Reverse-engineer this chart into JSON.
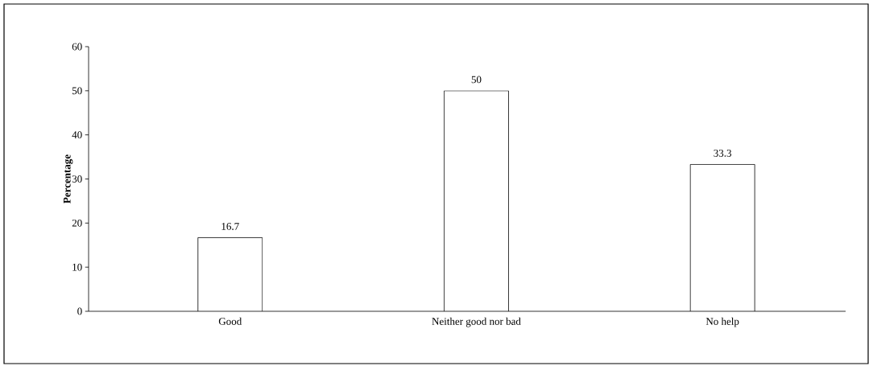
{
  "chart_data": {
    "type": "bar",
    "ylabel": "Percentage",
    "categories": [
      "Good",
      "Neither good nor bad",
      "No help"
    ],
    "values": [
      16.7,
      50,
      33.3
    ],
    "color": "#000000",
    "ylim": [
      0,
      60
    ],
    "yticks": [
      0,
      10,
      20,
      30,
      40,
      50,
      60
    ],
    "data_labels": true
  }
}
